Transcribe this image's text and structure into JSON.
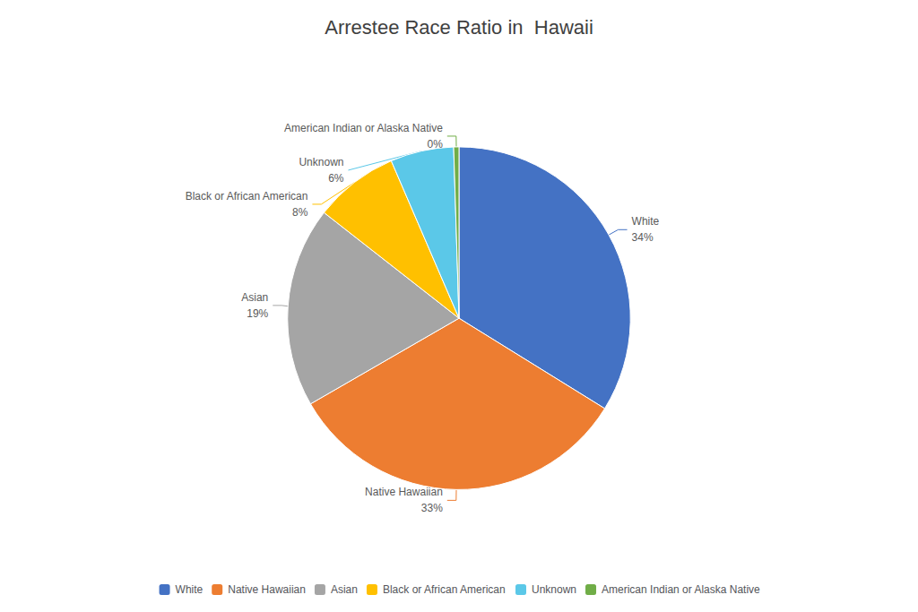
{
  "chart_data": {
    "type": "pie",
    "title": "Arrestee Race Ratio in  Hawaii",
    "categories": [
      "White",
      "Native Hawaiian",
      "Asian",
      "Black or African American",
      "Unknown",
      "American Indian or Alaska Native"
    ],
    "values": [
      34,
      33,
      19,
      8,
      6,
      0.5
    ],
    "value_labels": [
      "34%",
      "33%",
      "19%",
      "8%",
      "6%",
      "0%"
    ],
    "colors": [
      "#4472C4",
      "#ED7D31",
      "#A5A5A5",
      "#FFC000",
      "#5BC8E8",
      "#70AD47"
    ],
    "data_labels": true,
    "legend": "bottom"
  }
}
